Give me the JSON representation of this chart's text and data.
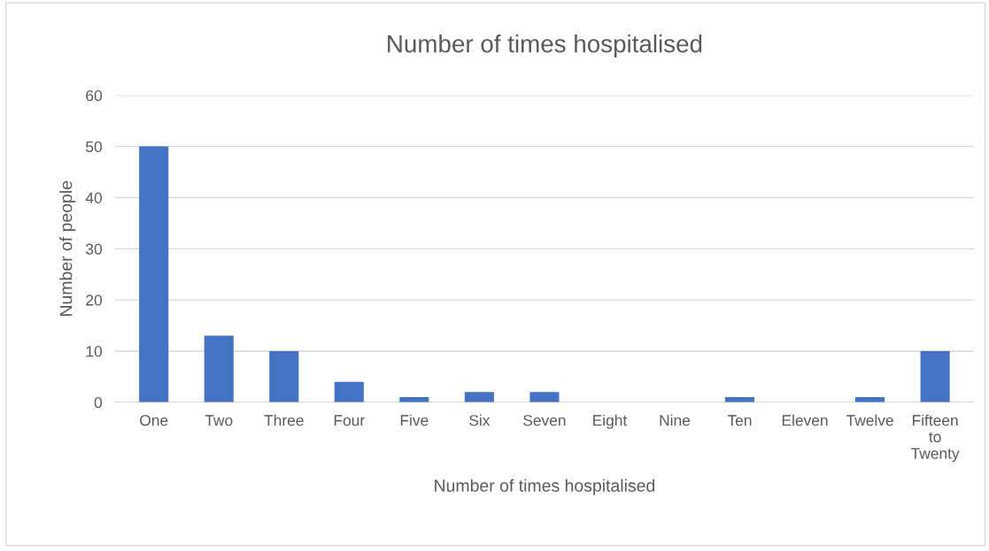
{
  "chart_data": {
    "type": "bar",
    "title": "Number of times hospitalised",
    "xlabel": "Number of times hospitalised",
    "ylabel": "Number of people",
    "categories": [
      "One",
      "Two",
      "Three",
      "Four",
      "Five",
      "Six",
      "Seven",
      "Eight",
      "Nine",
      "Ten",
      "Eleven",
      "Twelve",
      "Fifteen to Twenty"
    ],
    "values": [
      50,
      13,
      10,
      4,
      1,
      2,
      2,
      0,
      0,
      1,
      0,
      1,
      10
    ],
    "color": "#4472c4",
    "ylim": [
      0,
      60
    ],
    "yticks": [
      0,
      10,
      20,
      30,
      40,
      50,
      60
    ],
    "grid": "y",
    "legend": false
  }
}
